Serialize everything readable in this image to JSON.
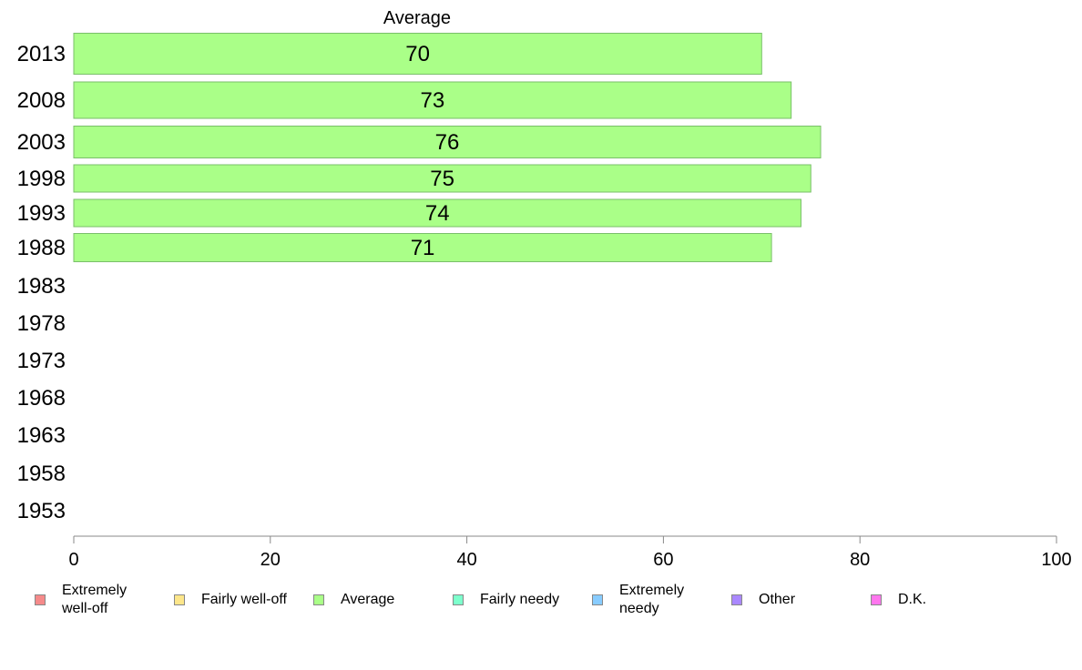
{
  "chart_data": {
    "type": "bar",
    "orientation": "horizontal",
    "title": "Average",
    "categories": [
      "2013",
      "2008",
      "2003",
      "1998",
      "1993",
      "1988",
      "1983",
      "1978",
      "1973",
      "1968",
      "1963",
      "1958",
      "1953"
    ],
    "series": [
      {
        "name": "Average",
        "values": [
          70,
          73,
          76,
          75,
          74,
          71,
          null,
          null,
          null,
          null,
          null,
          null,
          null
        ]
      }
    ],
    "data_labels": [
      "70",
      "73",
      "76",
      "75",
      "74",
      "71"
    ],
    "xlim": [
      0,
      100
    ],
    "xticks": [
      0,
      20,
      40,
      60,
      80,
      100
    ],
    "xlabel": "",
    "ylabel": "",
    "grid": false,
    "legend_placement": "bottom",
    "bar_color": "#aaff88",
    "bar_edge_color": "#7abf6a",
    "axis_color": "#888888"
  },
  "legend": [
    {
      "label": "Extremely well-off",
      "color": "#f58a8a"
    },
    {
      "label": "Fairly well-off",
      "color": "#fde68a"
    },
    {
      "label": "Average",
      "color": "#aaff88"
    },
    {
      "label": "Fairly needy",
      "color": "#7dffcc"
    },
    {
      "label": "Extremely needy",
      "color": "#88ccff"
    },
    {
      "label": "Other",
      "color": "#aa88ff"
    },
    {
      "label": "D.K.",
      "color": "#ff77ee"
    }
  ]
}
